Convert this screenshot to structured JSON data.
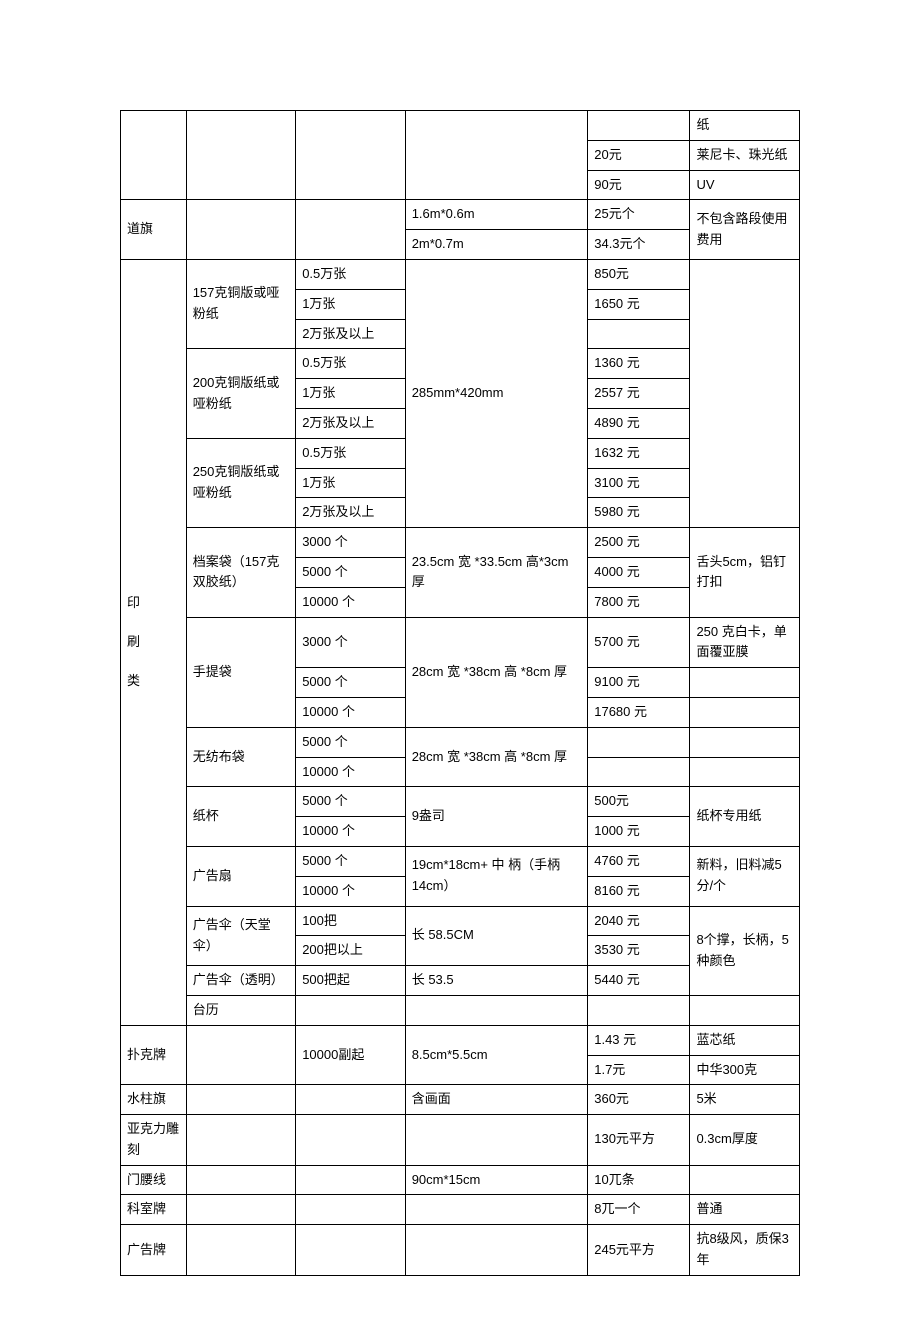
{
  "table": {
    "columns": [
      "col1",
      "col2",
      "col3",
      "col4",
      "col5",
      "col6"
    ],
    "rows": {
      "r1": {
        "c5": "",
        "c6": "纸"
      },
      "r2": {
        "c5": "20元",
        "c6": "莱尼卡、珠光纸"
      },
      "r3": {
        "c5": "90元",
        "c6": "UV"
      },
      "r4": {
        "c1": "道旗",
        "c4": "1.6m*0.6m",
        "c5": "25元个",
        "c6": "不包含路段使用费用"
      },
      "r5": {
        "c4": "2m*0.7m",
        "c5": "34.3元个"
      },
      "r6": {
        "c2": "157克铜版或哑粉纸",
        "c3": "0.5万张",
        "c4": "285mm*420mm",
        "c5": "850元"
      },
      "r7": {
        "c3": "1万张",
        "c5": "1650 元"
      },
      "r8": {
        "c3": "2万张及以上"
      },
      "r9": {
        "c2": "200克铜版纸或哑粉纸",
        "c3": "0.5万张",
        "c5": "1360 元"
      },
      "r10": {
        "c3": "1万张",
        "c5": "2557 元"
      },
      "r11": {
        "c3": "2万张及以上",
        "c5": "4890 元"
      },
      "r12": {
        "c2": "250克铜版纸或哑粉纸",
        "c3": "0.5万张",
        "c5": "1632 元"
      },
      "r13": {
        "c3": "1万张",
        "c5": "3100 元"
      },
      "r14": {
        "c3": "2万张及以上",
        "c5": "5980 元"
      },
      "r15": {
        "c2": "档案袋（157克双胶纸）",
        "c3": "3000 个",
        "c4": "23.5cm 宽 *33.5cm 高*3cm厚",
        "c5": "2500 元",
        "c6": "舌头5cm，铝钉打扣"
      },
      "r16": {
        "c3": "5000 个",
        "c5": "4000 元"
      },
      "r17": {
        "c3": "10000 个",
        "c5": "7800 元"
      },
      "r18": {
        "c2": "手提袋",
        "c3": "3000 个",
        "c4": "28cm 宽 *38cm 高 *8cm 厚",
        "c5": "5700 元",
        "c6": "250 克白卡，单面覆亚膜"
      },
      "r19": {
        "c3": "5000 个",
        "c5": "9100 元"
      },
      "r20": {
        "c3": "10000 个",
        "c5": "17680 元"
      },
      "r21": {
        "c2": "无纺布袋",
        "c3": "5000 个",
        "c4": "28cm 宽 *38cm 高 *8cm 厚"
      },
      "r22": {
        "c3": "10000 个"
      },
      "r23": {
        "c2": "纸杯",
        "c3": "5000 个",
        "c4": "9盎司",
        "c5": "500元",
        "c6": "纸杯专用纸"
      },
      "r24": {
        "c3": "10000 个",
        "c5": "1000 元"
      },
      "r25": {
        "c2": "广告扇",
        "c3": "5000 个",
        "c4": "19cm*18cm+ 中 柄（手柄14cm）",
        "c5": "4760 元",
        "c6": "新料，旧料减5分/个"
      },
      "r26": {
        "c3": "10000 个",
        "c5": "8160 元"
      },
      "r27": {
        "c2": "广告伞（天堂伞）",
        "c3": "100把",
        "c4": "长 58.5CM",
        "c5": "2040 元",
        "c6": "8个撑，长柄，5种颜色"
      },
      "r28": {
        "c3": "200把以上",
        "c5": "3530 元"
      },
      "r29": {
        "c2": "广告伞（透明）",
        "c3": "500把起",
        "c4": "长 53.5",
        "c5": "5440 元"
      },
      "r30": {
        "c2": "台历"
      },
      "r31": {
        "c1": "扑克牌",
        "c3": "10000副起",
        "c4": "8.5cm*5.5cm",
        "c5": "1.43 元",
        "c6": "蓝芯纸"
      },
      "r32": {
        "c5": "1.7元",
        "c6": "中华300克"
      },
      "r33": {
        "c1": "水柱旗",
        "c4": "含画面",
        "c5": "360元",
        "c6": "5米"
      },
      "r34": {
        "c1": "亚克力雕刻",
        "c5": "130元平方",
        "c6": "0.3cm厚度"
      },
      "r35": {
        "c1": "门腰线",
        "c4": "90cm*15cm",
        "c5": "10兀条"
      },
      "r36": {
        "c1": "科室牌",
        "c5": "8兀一个",
        "c6": "普通"
      },
      "r37": {
        "c1": "广告牌",
        "c5": "245元平方",
        "c6": "抗8级风，质保3年"
      }
    },
    "vertical_label": {
      "l1": "印",
      "l2": "刷",
      "l3": "类"
    }
  },
  "style": {
    "border_color": "#000000",
    "background_color": "#ffffff",
    "text_color": "#000000",
    "font_size": 13,
    "font_family": "Microsoft YaHei"
  }
}
